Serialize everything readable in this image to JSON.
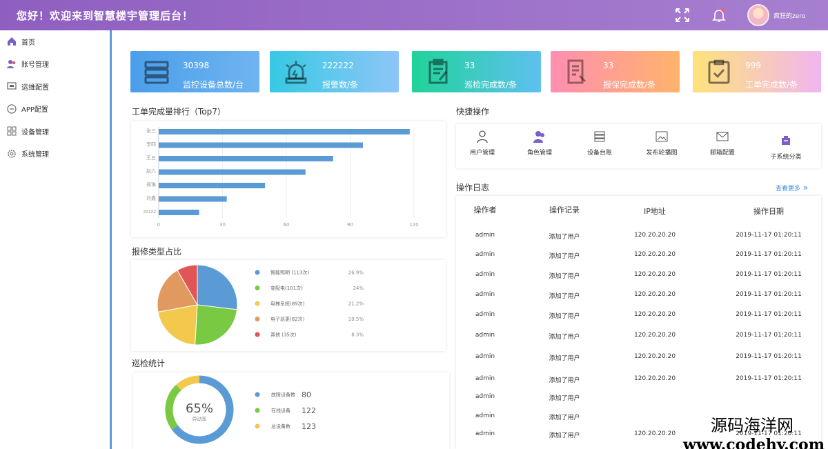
{
  "header": {
    "title": "您好！欢迎来到智慧楼宇管理后台！",
    "username": "疯狂的zero",
    "icons": [
      "fullscreen-icon",
      "bell-icon",
      "avatar"
    ]
  },
  "sidebar": {
    "items": [
      {
        "label": "首页",
        "icon": "home-icon"
      },
      {
        "label": "账号管理",
        "icon": "users-icon"
      },
      {
        "label": "运维配置",
        "icon": "monitor-icon"
      },
      {
        "label": "APP配置",
        "icon": "app-icon"
      },
      {
        "label": "设备管理",
        "icon": "grid-icon"
      },
      {
        "label": "系统管理",
        "icon": "gear-icon"
      }
    ]
  },
  "cards": [
    {
      "value": "30398",
      "label": "监控设备总数/台",
      "icon": "server-icon",
      "gradient": [
        "#4a9eea",
        "#6fb4f0"
      ]
    },
    {
      "value": "222222",
      "label": "报警数/条",
      "icon": "alarm-icon",
      "gradient": [
        "#36c9e3",
        "#8ec5f8"
      ]
    },
    {
      "value": "33",
      "label": "巡检完成数/条",
      "icon": "clipboard-icon",
      "gradient": [
        "#20d39a",
        "#5ec0ef"
      ]
    },
    {
      "value": "33",
      "label": "报保完成数/条",
      "icon": "repair-icon",
      "gradient": [
        "#ff8fb1",
        "#ffb36b"
      ]
    },
    {
      "value": "999",
      "label": "工单完成数/条",
      "icon": "checklist-icon",
      "gradient": [
        "#ffe27a",
        "#f0b6f0"
      ]
    }
  ],
  "sections": {
    "bar_title": "工单完成量排行（Top7）",
    "pie_title": "报修类型占比",
    "donut_title": "巡检统计",
    "quick_title": "快捷操作",
    "log_title": "操作日志",
    "more_link": "查看更多"
  },
  "chart_data": [
    {
      "type": "bar",
      "orientation": "horizontal",
      "title": "工单完成量排行（Top7）",
      "categories": [
        "张三",
        "李四",
        "王五",
        "赵六",
        "郑琳",
        "刘鑫",
        "zzzzz"
      ],
      "values": [
        118,
        96,
        82,
        69,
        50,
        32,
        19
      ],
      "xticks": [
        "0",
        "30",
        "60",
        "90",
        "120"
      ],
      "xlim": [
        0,
        120
      ],
      "color": "#5b9bd5"
    },
    {
      "type": "pie",
      "title": "报修类型占比",
      "slices": [
        {
          "label": "智能照明 (113次)",
          "value": 113,
          "percent": "26.9%",
          "color": "#5b9bd5"
        },
        {
          "label": "变配电(101次)",
          "value": 101,
          "percent": "24%",
          "color": "#7ac943"
        },
        {
          "label": "电梯系统(89次)",
          "value": 89,
          "percent": "21.2%",
          "color": "#f2c94c"
        },
        {
          "label": "电子巡更(82次)",
          "value": 82,
          "percent": "19.5%",
          "color": "#e09a5f"
        },
        {
          "label": "其他 (35次)",
          "value": 35,
          "percent": "8.3%",
          "color": "#e05555"
        }
      ]
    },
    {
      "type": "pie",
      "title": "巡检统计",
      "center_value": "65%",
      "center_label": "异动率",
      "segments": [
        {
          "label": "故障设备数",
          "value": 80,
          "color": "#5b9bd5"
        },
        {
          "label": "在线设备",
          "value": 122,
          "color": "#7ac943"
        },
        {
          "label": "总设备数",
          "value": 123,
          "color": "#f2c94c"
        }
      ],
      "ring_percent": [
        65,
        23,
        12
      ]
    }
  ],
  "quick_ops": [
    {
      "label": "用户管理",
      "icon": "user-icon"
    },
    {
      "label": "角色管理",
      "icon": "role-icon"
    },
    {
      "label": "设备台账",
      "icon": "device-list-icon"
    },
    {
      "label": "发布轮播图",
      "icon": "image-icon"
    },
    {
      "label": "邮箱配置",
      "icon": "mail-icon"
    },
    {
      "label": "子系统分类",
      "icon": "subsystem-icon"
    }
  ],
  "log_table": {
    "headers": [
      "操作者",
      "操作记录",
      "IP地址",
      "操作日期"
    ],
    "rows": [
      [
        "admin",
        "添加了用户",
        "120.20.20.20",
        "2019-11-17 01:20:11"
      ],
      [
        "admin",
        "添加了用户",
        "120.20.20.20",
        "2019-11-17 01:20:11"
      ],
      [
        "admin",
        "添加了用户",
        "120.20.20.20",
        "2019-11-17 01:20:11"
      ],
      [
        "admin",
        "添加了用户",
        "120.20.20.20",
        "2019-11-17 01:20:11"
      ],
      [
        "admin",
        "添加了用户",
        "120.20.20.20",
        "2019-11-17 01:20:11"
      ],
      [
        "admin",
        "添加了用户",
        "120.20.20.20",
        "2019-11-17 01:20:11"
      ],
      [
        "admin",
        "添加了用户",
        "120.20.20.20",
        "2019-11-17 01:20:11"
      ],
      [
        "admin",
        "添加了用户",
        "120.20.20.20",
        "2019-11-17 01:20:11"
      ],
      [
        "admin",
        "添加了用户",
        "",
        ""
      ],
      [
        "admin",
        "添加了用户",
        "",
        ""
      ],
      [
        "admin",
        "添加了用户",
        "120.20.20.20",
        "2019-11-17 01:20:11"
      ]
    ]
  },
  "watermark": {
    "line1": "源码海洋网",
    "line2": "www.codehy.com"
  }
}
